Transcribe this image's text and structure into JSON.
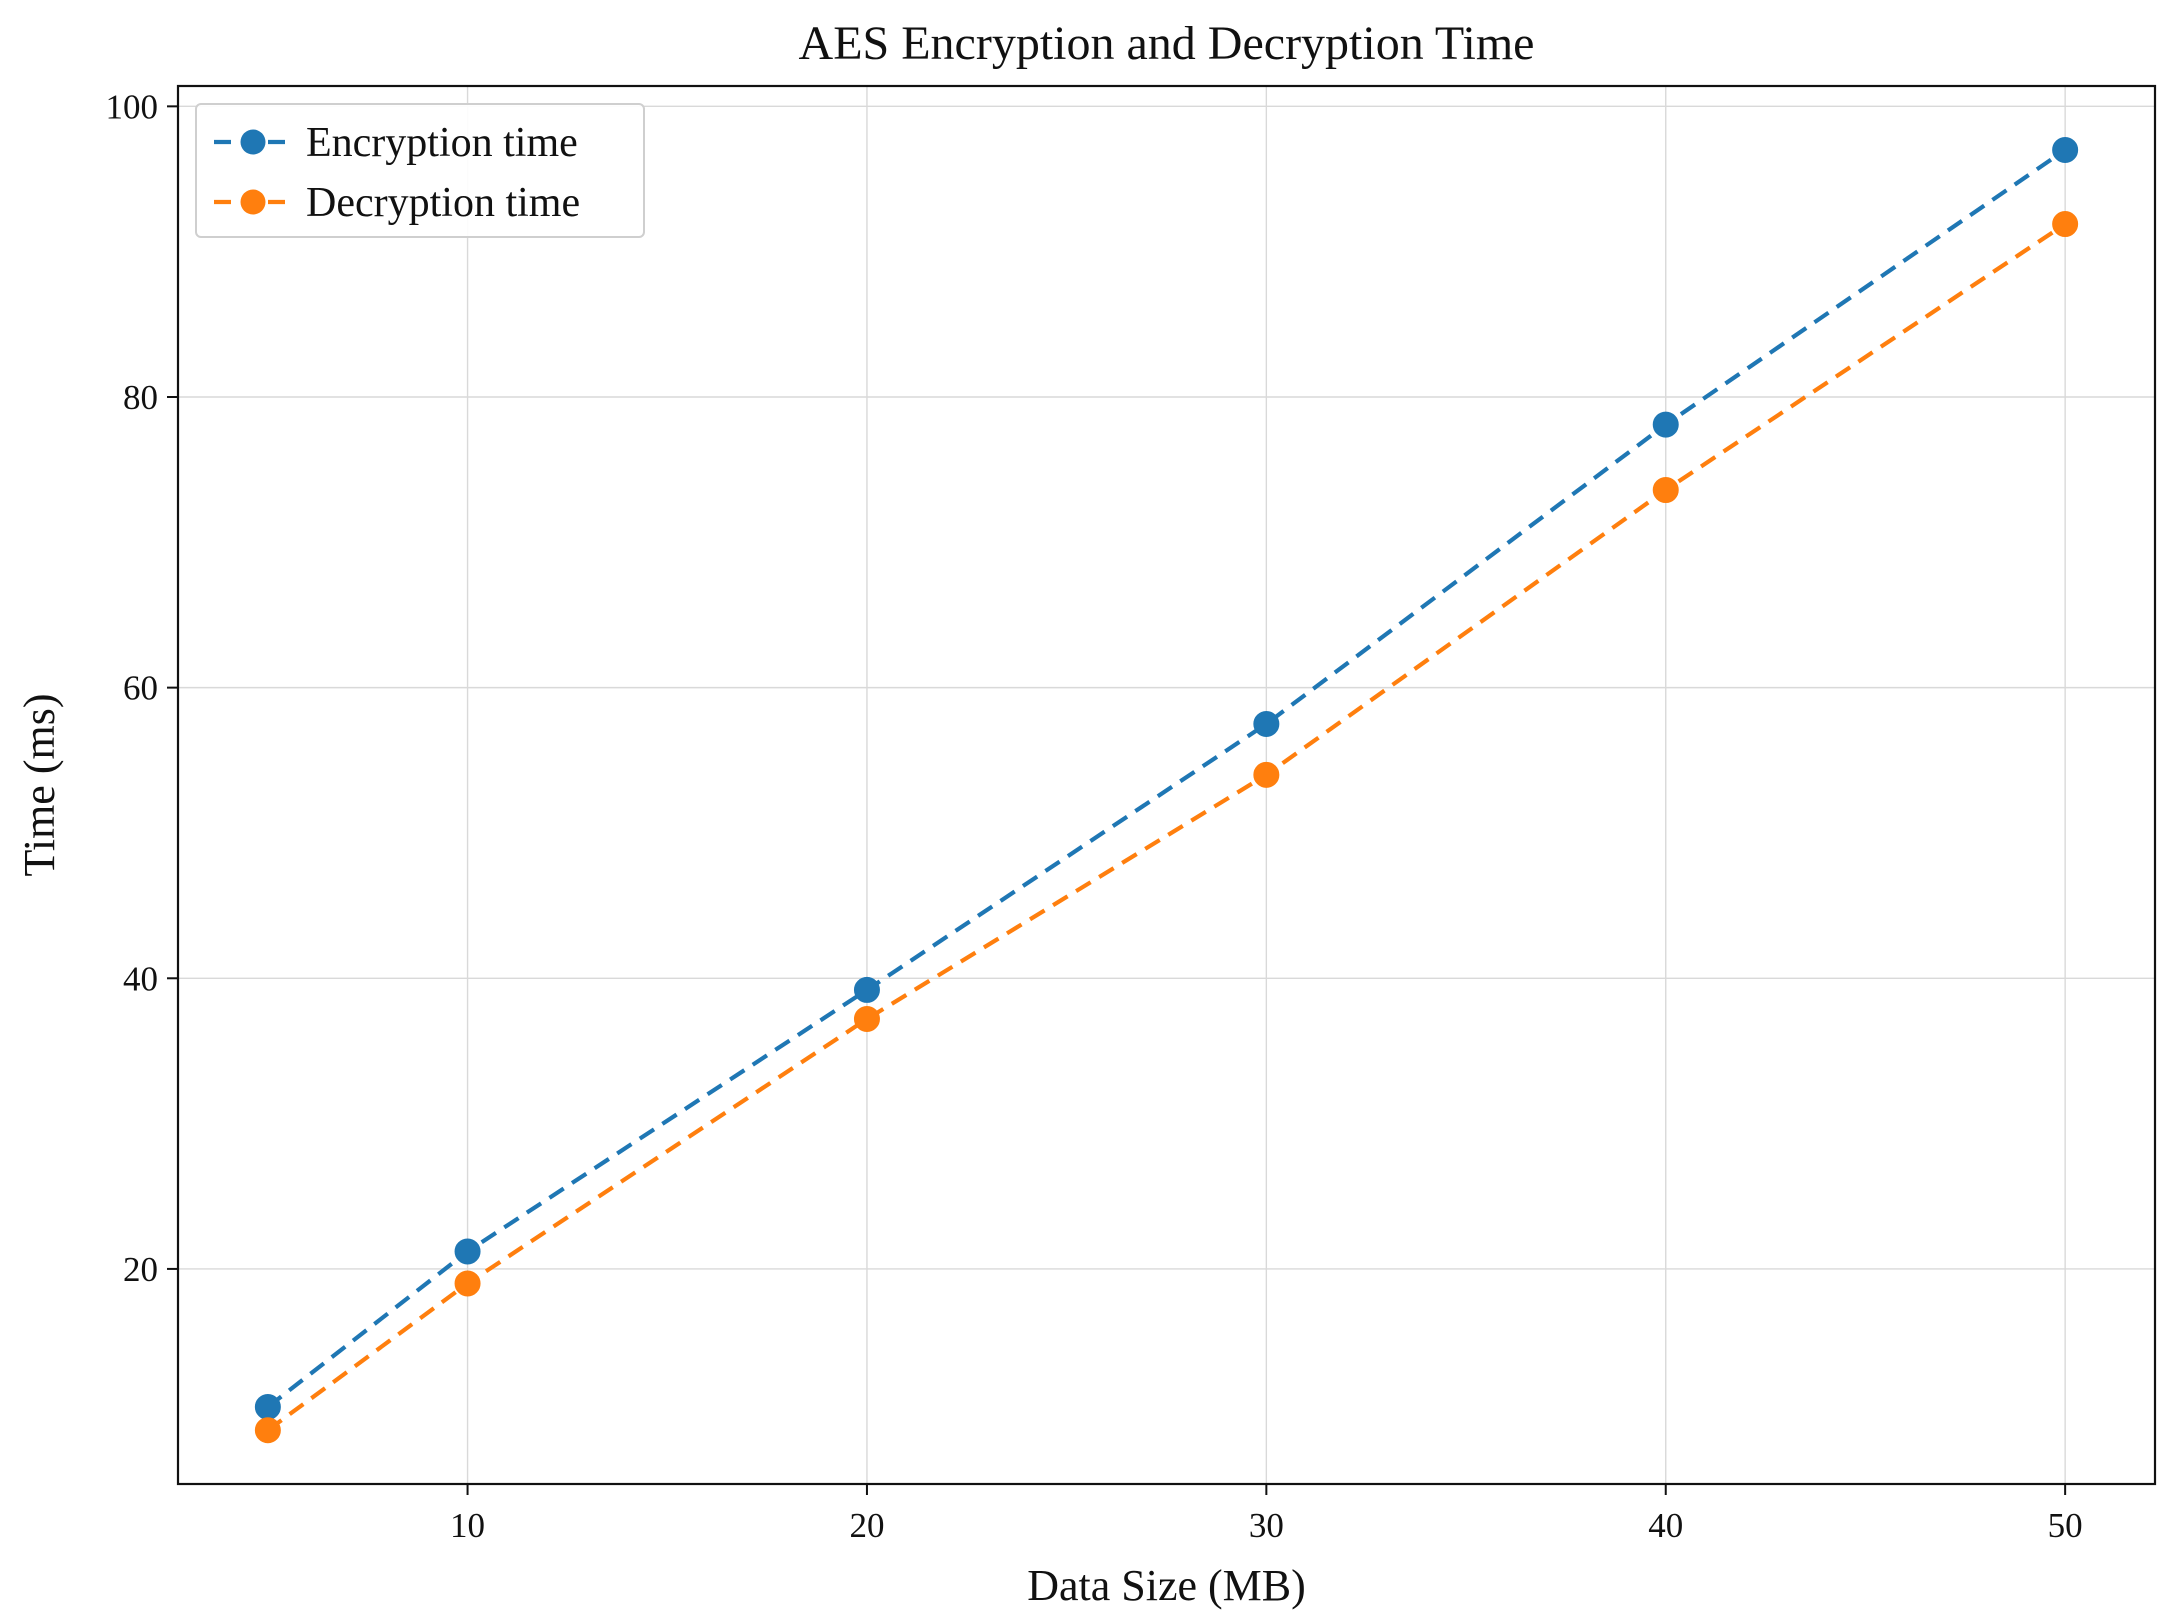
{
  "chart_data": {
    "type": "line",
    "title": "AES Encryption and Decryption Time",
    "xlabel": "Data Size (MB)",
    "ylabel": "Time (ms)",
    "x": [
      5,
      10,
      20,
      30,
      40,
      50
    ],
    "xlim": [
      2.75,
      52.25
    ],
    "ylim": [
      5.2,
      101.4
    ],
    "xticks": [
      10,
      20,
      30,
      40,
      50
    ],
    "yticks": [
      20,
      40,
      60,
      80,
      100
    ],
    "grid": true,
    "legend_position": "upper-left",
    "series": [
      {
        "name": "Encryption time",
        "values": [
          10.5,
          21.2,
          39.2,
          57.5,
          78.1,
          97.0
        ],
        "color": "#1f77b4",
        "linestyle": "dashed",
        "marker": "circle"
      },
      {
        "name": "Decryption time",
        "values": [
          8.9,
          19.0,
          37.2,
          54.0,
          73.6,
          91.9
        ],
        "color": "#ff7f0e",
        "linestyle": "dashed",
        "marker": "circle"
      }
    ]
  }
}
